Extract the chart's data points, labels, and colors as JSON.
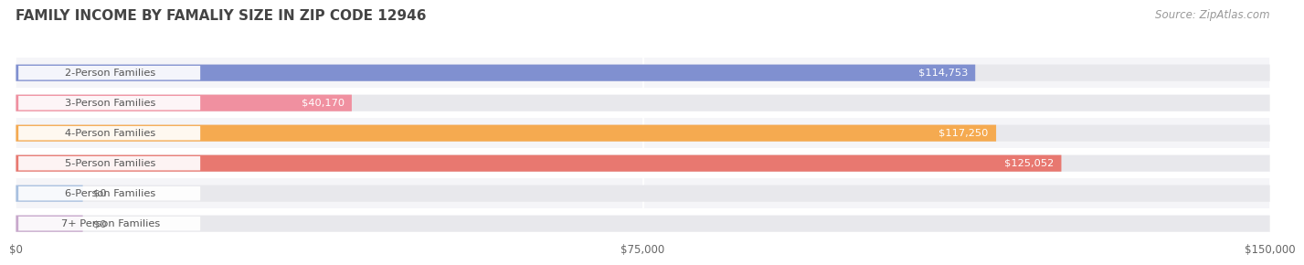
{
  "title": "FAMILY INCOME BY FAMALIY SIZE IN ZIP CODE 12946",
  "source": "Source: ZipAtlas.com",
  "categories": [
    "2-Person Families",
    "3-Person Families",
    "4-Person Families",
    "5-Person Families",
    "6-Person Families",
    "7+ Person Families"
  ],
  "values": [
    114753,
    40170,
    117250,
    125052,
    0,
    0
  ],
  "zero_stub": 8000,
  "bar_colors": [
    "#8090d0",
    "#f090a0",
    "#f5aa50",
    "#e87870",
    "#a8c0e0",
    "#c8a8cc"
  ],
  "xlim": [
    0,
    150000
  ],
  "xtick_labels": [
    "$0",
    "$75,000",
    "$150,000"
  ],
  "xtick_values": [
    0,
    75000,
    150000
  ],
  "background_color": "#ffffff",
  "row_bg_even": "#f5f5f8",
  "row_bg_odd": "#ffffff",
  "bar_bg_color": "#e8e8ec",
  "title_fontsize": 11,
  "source_fontsize": 8.5,
  "bar_height": 0.55,
  "value_labels": [
    "$114,753",
    "$40,170",
    "$117,250",
    "$125,052",
    "$0",
    "$0"
  ],
  "label_text_color": "#555555",
  "value_label_color_inside": "#ffffff",
  "value_label_color_outside": "#666666"
}
